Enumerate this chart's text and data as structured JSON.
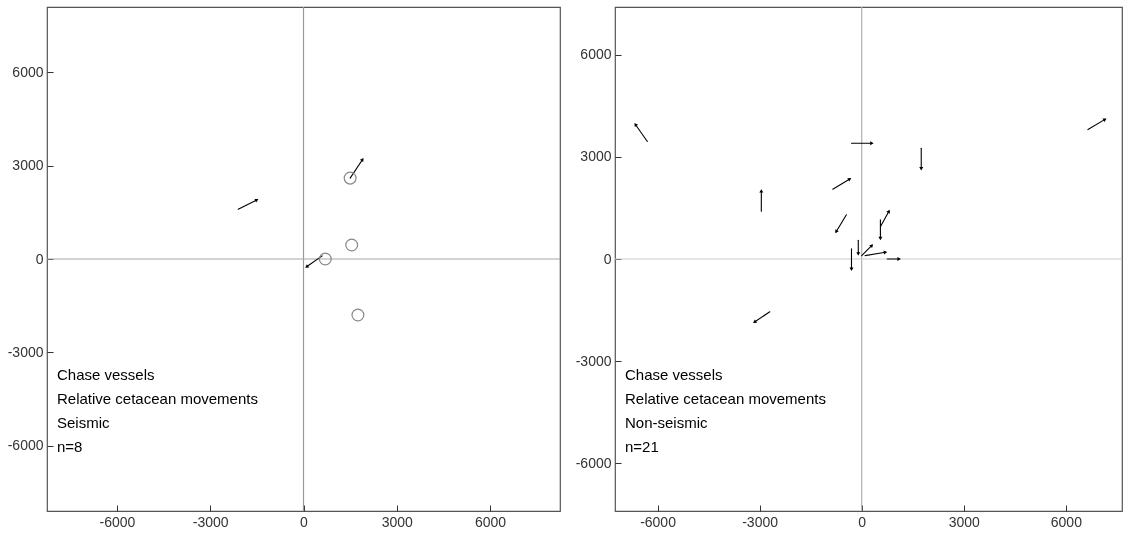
{
  "chart_data": [
    {
      "type": "line",
      "xlim": [
        -8250,
        8250
      ],
      "ylim": [
        -8100,
        8100
      ],
      "xticks": [
        -6000,
        -3000,
        0,
        3000,
        6000
      ],
      "yticks": [
        -6000,
        -3000,
        0,
        3000,
        6000
      ],
      "grid": false,
      "ref_lines": [
        {
          "axis": "x",
          "value": 0,
          "color": "#9a9a9a"
        },
        {
          "axis": "y",
          "value": 0,
          "color": "#a6a6a6"
        }
      ],
      "annotations": [
        "Chase vessels",
        "Relative cetacean movements",
        "Seismic",
        "n=8"
      ],
      "series": [
        {
          "type": "line",
          "color": "#000000",
          "marker": "triangle",
          "x": [
            -2100,
            -1500
          ],
          "values": [
            1600,
            1900
          ]
        },
        {
          "type": "line",
          "color": "#000000",
          "marker": "triangle",
          "x": [
            1500,
            1900
          ],
          "values": [
            2600,
            3200
          ]
        },
        {
          "type": "line",
          "color": "#000000",
          "marker": "triangle",
          "x": [
            600,
            100
          ],
          "values": [
            100,
            -250
          ]
        },
        {
          "type": "scatter",
          "color": "#888888",
          "marker": "circle",
          "x": [
            1500,
            1550,
            700,
            1750
          ],
          "values": [
            2600,
            450,
            0,
            -1800
          ]
        }
      ]
    },
    {
      "type": "line",
      "xlim": [
        -7250,
        7650
      ],
      "ylim": [
        -7400,
        7400
      ],
      "xticks": [
        -6000,
        -3000,
        0,
        3000,
        6000
      ],
      "yticks": [
        -6000,
        -3000,
        0,
        3000,
        6000
      ],
      "grid": false,
      "ref_lines": [
        {
          "axis": "x",
          "value": 0,
          "color": "#b0b0b0"
        },
        {
          "axis": "y",
          "value": 0,
          "color": "#cccccc"
        }
      ],
      "annotations": [
        "Chase vessels",
        "Relative cetacean movements",
        "Non-seismic",
        "n=21"
      ],
      "series": [
        {
          "type": "line",
          "color": "#000000",
          "marker": "triangle",
          "x": [
            -6300,
            -6650
          ],
          "values": [
            3450,
            3950
          ]
        },
        {
          "type": "line",
          "color": "#000000",
          "marker": "triangle",
          "x": [
            -300,
            300
          ],
          "values": [
            3400,
            3400
          ]
        },
        {
          "type": "line",
          "color": "#000000",
          "marker": "triangle",
          "x": [
            1750,
            1750
          ],
          "values": [
            3250,
            2650
          ]
        },
        {
          "type": "line",
          "color": "#000000",
          "marker": "triangle",
          "x": [
            6650,
            7150
          ],
          "values": [
            3800,
            4100
          ]
        },
        {
          "type": "line",
          "color": "#000000",
          "marker": "triangle",
          "x": [
            -2950,
            -2950
          ],
          "values": [
            1400,
            2000
          ]
        },
        {
          "type": "line",
          "color": "#000000",
          "marker": "triangle",
          "x": [
            -850,
            -350
          ],
          "values": [
            2050,
            2350
          ]
        },
        {
          "type": "line",
          "color": "#000000",
          "marker": "triangle",
          "x": [
            -450,
            -750
          ],
          "values": [
            1300,
            800
          ]
        },
        {
          "type": "line",
          "color": "#000000",
          "marker": "triangle",
          "x": [
            550,
            800
          ],
          "values": [
            950,
            1400
          ]
        },
        {
          "type": "line",
          "color": "#000000",
          "marker": "triangle",
          "x": [
            550,
            550
          ],
          "values": [
            1150,
            600
          ]
        },
        {
          "type": "line",
          "color": "#000000",
          "marker": "triangle",
          "x": [
            -2700,
            -3150
          ],
          "values": [
            -1550,
            -1850
          ]
        },
        {
          "type": "line",
          "color": "#000000",
          "marker": "triangle",
          "x": [
            750,
            1100
          ],
          "values": [
            0,
            0
          ]
        },
        {
          "type": "line",
          "color": "#000000",
          "marker": "triangle",
          "x": [
            -300,
            -300
          ],
          "values": [
            300,
            -300
          ]
        },
        {
          "type": "line",
          "color": "#000000",
          "marker": "triangle",
          "x": [
            0,
            300
          ],
          "values": [
            100,
            400
          ]
        },
        {
          "type": "line",
          "color": "#000000",
          "marker": "triangle",
          "x": [
            100,
            700
          ],
          "values": [
            100,
            200
          ]
        },
        {
          "type": "line",
          "color": "#000000",
          "marker": "triangle",
          "x": [
            -100,
            -100
          ],
          "values": [
            550,
            150
          ]
        }
      ]
    }
  ]
}
